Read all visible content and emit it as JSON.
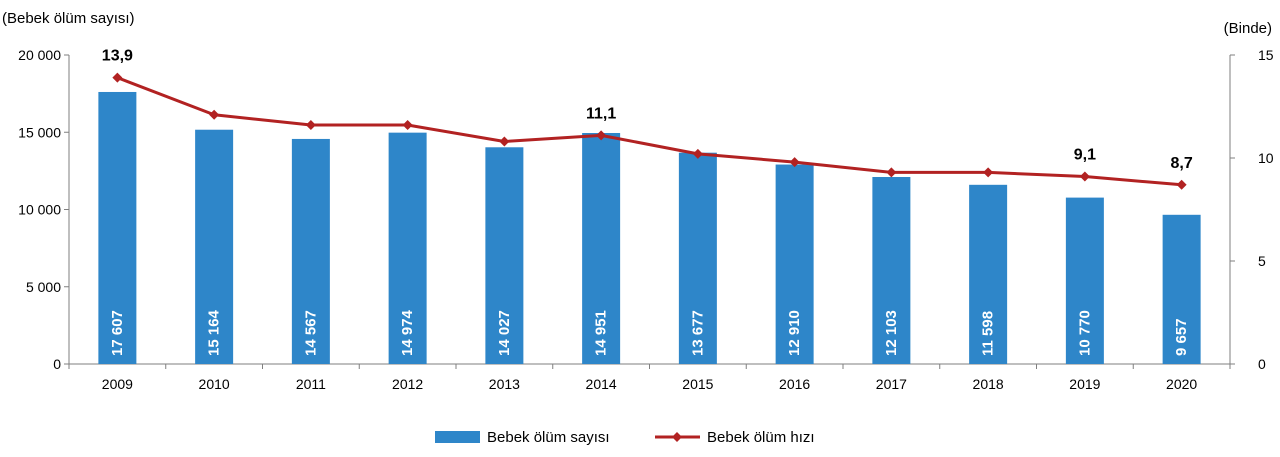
{
  "chart_data": {
    "type": "bar+line",
    "y_left_label": "(Bebek ölüm sayısı)",
    "y_right_label": "(Binde)",
    "categories": [
      "2009",
      "2010",
      "2011",
      "2012",
      "2013",
      "2014",
      "2015",
      "2016",
      "2017",
      "2018",
      "2019",
      "2020"
    ],
    "y_left_lim": [
      0,
      20000
    ],
    "y_left_ticks": [
      0,
      5000,
      10000,
      15000,
      20000
    ],
    "y_left_tick_labels": [
      "0",
      "5 000",
      "10 000",
      "15 000",
      "20 000"
    ],
    "y_right_lim": [
      0,
      15
    ],
    "y_right_ticks": [
      0,
      5,
      10,
      15
    ],
    "y_right_tick_labels": [
      "0",
      "5",
      "10",
      "15"
    ],
    "series": [
      {
        "name": "Bebek ölüm sayısı",
        "type": "bar",
        "axis": "left",
        "color": "#2e86c9",
        "values": [
          17607,
          15164,
          14567,
          14974,
          14027,
          14951,
          13677,
          12910,
          12103,
          11598,
          10770,
          9657
        ],
        "labels": [
          "17 607",
          "15 164",
          "14 567",
          "14 974",
          "14 027",
          "14 951",
          "13 677",
          "12 910",
          "12 103",
          "11 598",
          "10 770",
          "9 657"
        ]
      },
      {
        "name": "Bebek ölüm hızı",
        "type": "line",
        "axis": "right",
        "color": "#b22222",
        "values": [
          13.9,
          12.1,
          11.6,
          11.6,
          10.8,
          11.1,
          10.2,
          9.8,
          9.3,
          9.3,
          9.1,
          8.7
        ],
        "annotations": [
          {
            "index": 0,
            "label": "13,9"
          },
          {
            "index": 5,
            "label": "11,1"
          },
          {
            "index": 10,
            "label": "9,1"
          },
          {
            "index": 11,
            "label": "8,7"
          }
        ]
      }
    ],
    "legend_position": "bottom",
    "grid": false
  }
}
